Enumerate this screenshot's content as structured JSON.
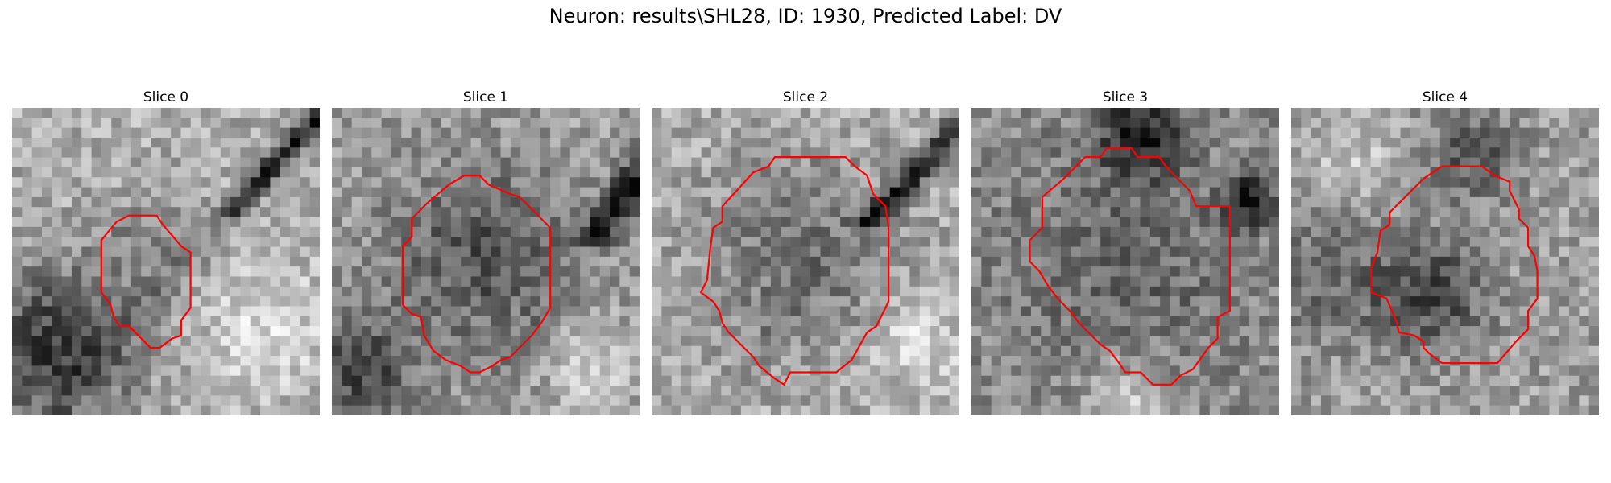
{
  "figure": {
    "title": "Neuron: results\\SHL28, ID: 1930, Predicted Label: DV"
  },
  "colors": {
    "contour": "#ff0000",
    "background": "#ffffff"
  },
  "slices": [
    {
      "title": "Slice 0"
    },
    {
      "title": "Slice 1"
    },
    {
      "title": "Slice 2"
    },
    {
      "title": "Slice 3"
    },
    {
      "title": "Slice 4"
    }
  ]
}
